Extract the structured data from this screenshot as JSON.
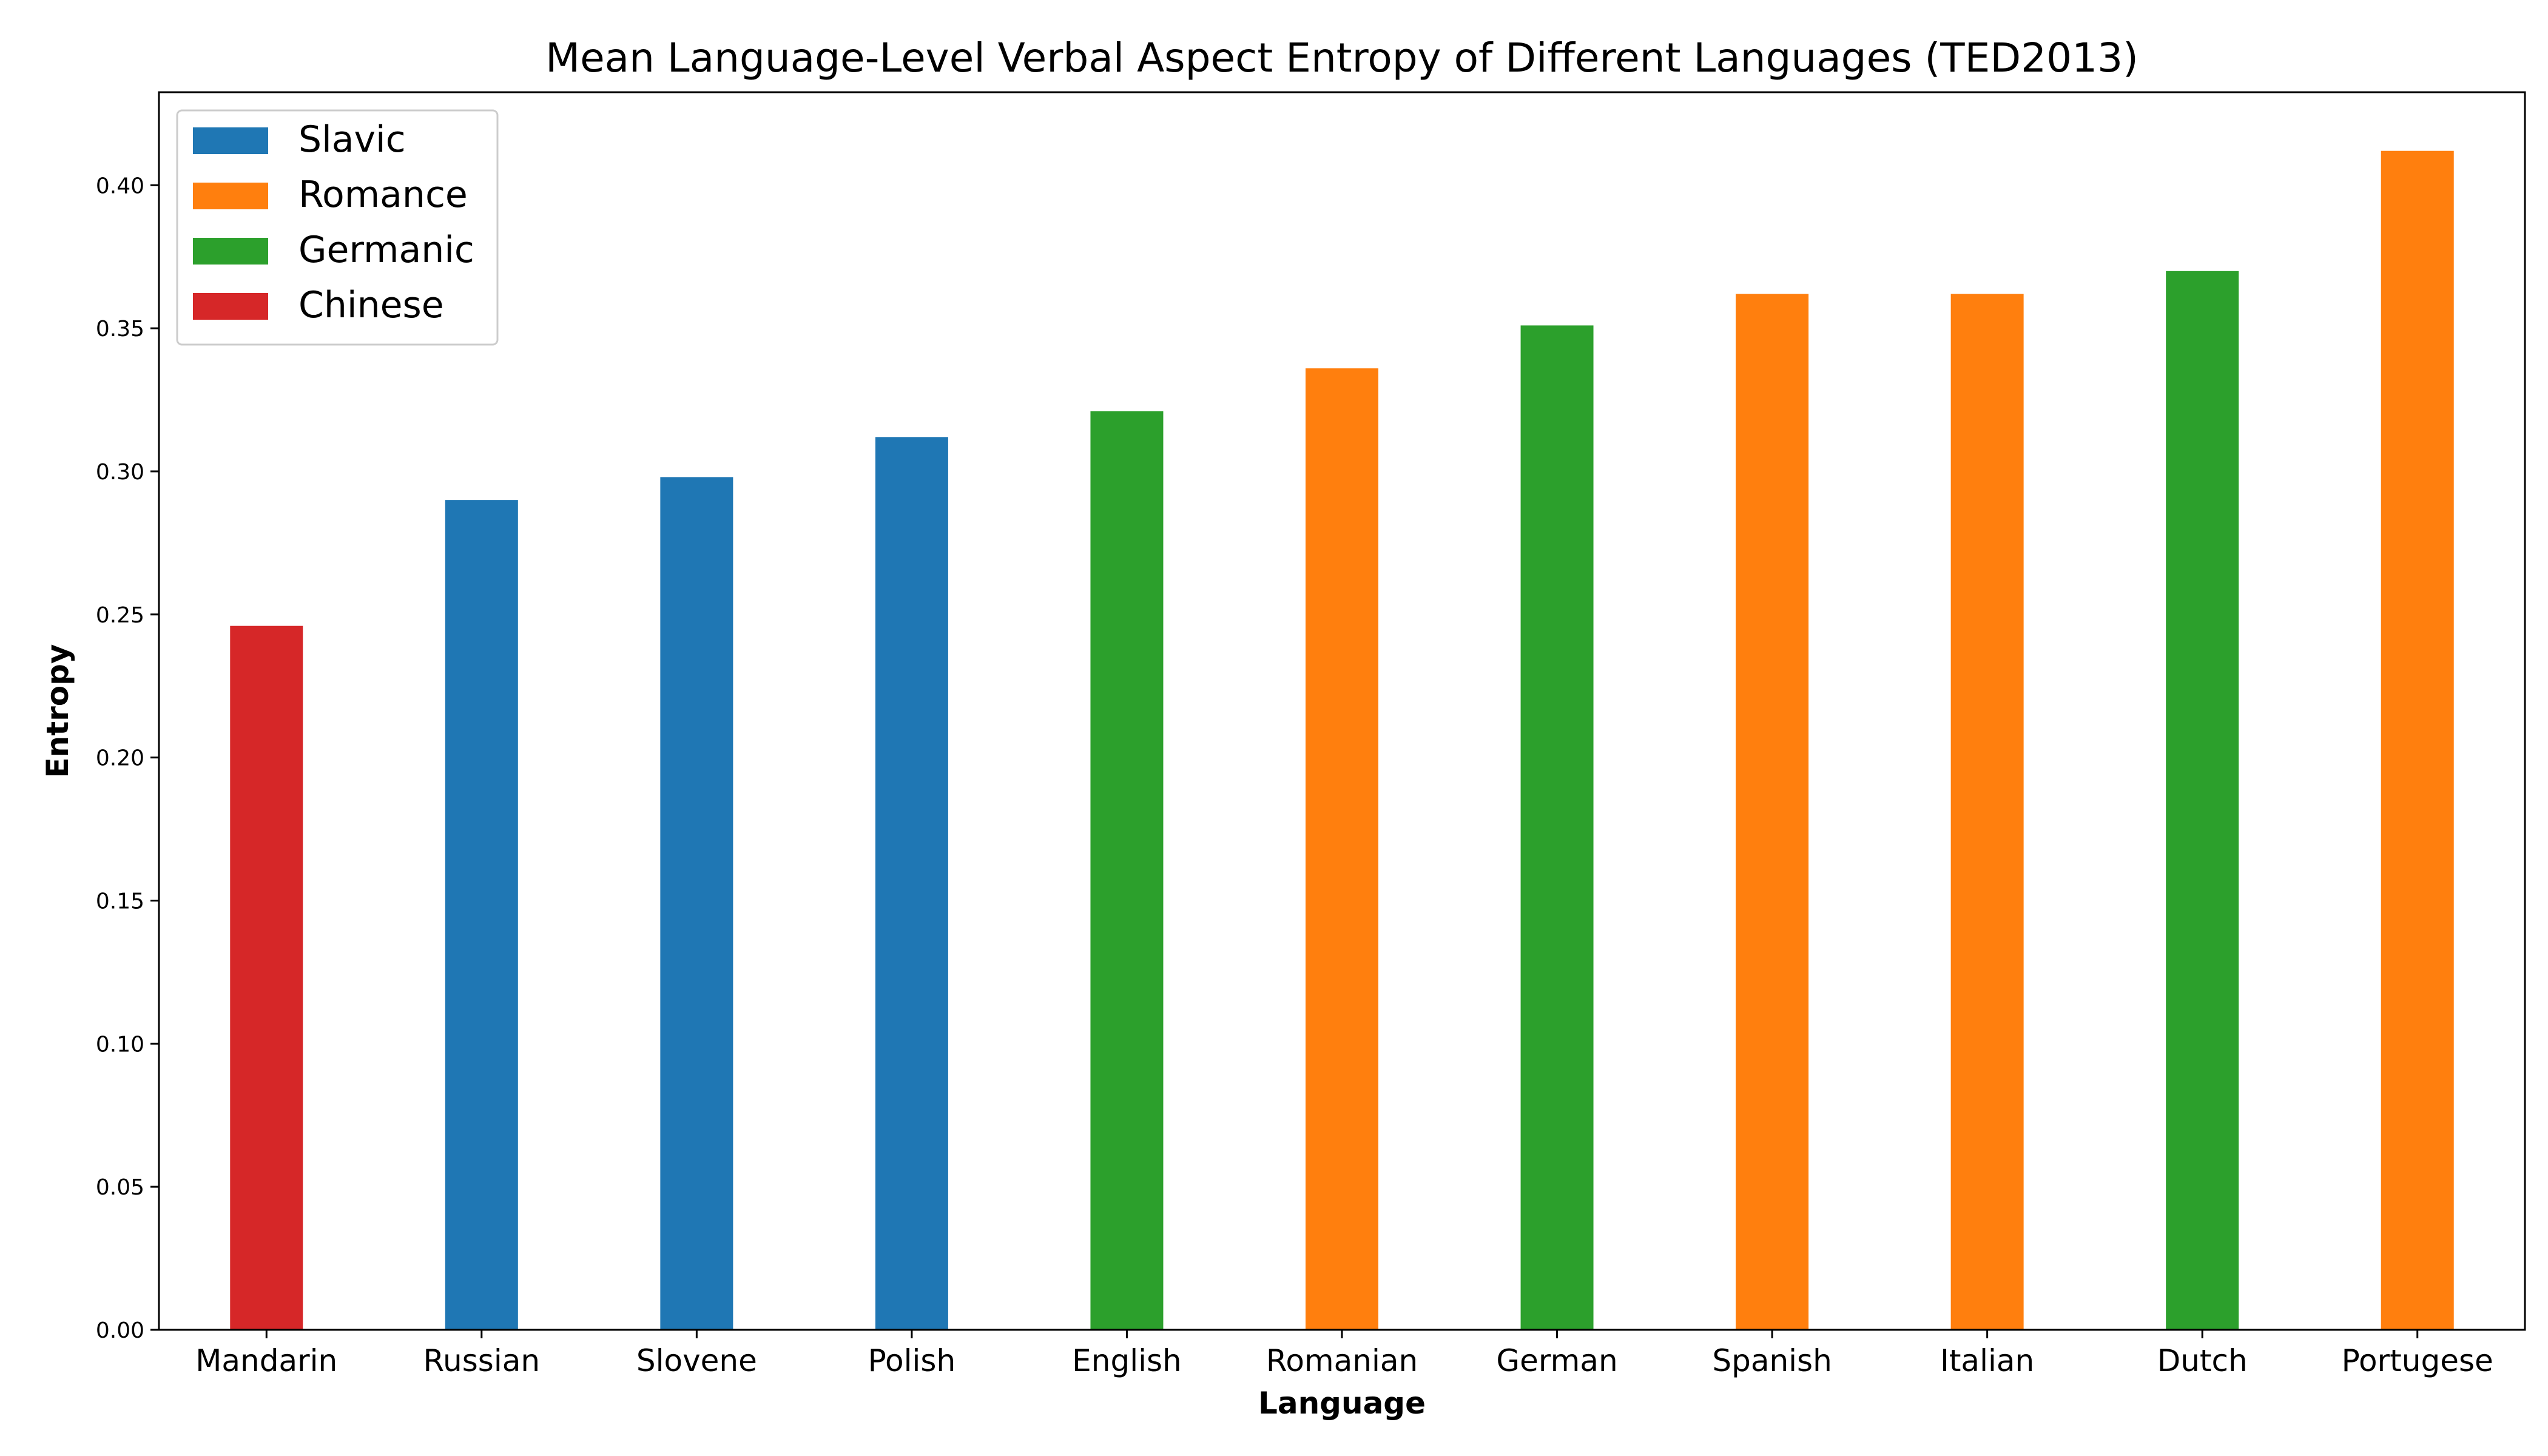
{
  "chart_data": {
    "type": "bar",
    "title": "Mean Language-Level Verbal Aspect Entropy of Different Languages (TED2013)",
    "xlabel": "Language",
    "ylabel": "Entropy",
    "ylim": [
      0,
      0.4325
    ],
    "yticks": [
      "0.00",
      "0.05",
      "0.10",
      "0.15",
      "0.20",
      "0.25",
      "0.30",
      "0.35",
      "0.40"
    ],
    "grid": false,
    "legend_position": "top-left",
    "categories": [
      "Mandarin",
      "Russian",
      "Slovene",
      "Polish",
      "English",
      "Romanian",
      "German",
      "Spanish",
      "Italian",
      "Dutch",
      "Portugese"
    ],
    "values": [
      0.246,
      0.29,
      0.298,
      0.312,
      0.321,
      0.336,
      0.351,
      0.362,
      0.362,
      0.37,
      0.412
    ],
    "groups": [
      "Chinese",
      "Slavic",
      "Slavic",
      "Slavic",
      "Germanic",
      "Romance",
      "Germanic",
      "Romance",
      "Romance",
      "Germanic",
      "Romance"
    ],
    "legend": [
      {
        "name": "Slavic",
        "color": "#1f77b4"
      },
      {
        "name": "Romance",
        "color": "#ff7f0e"
      },
      {
        "name": "Germanic",
        "color": "#2ca02c"
      },
      {
        "name": "Chinese",
        "color": "#d62728"
      }
    ]
  }
}
